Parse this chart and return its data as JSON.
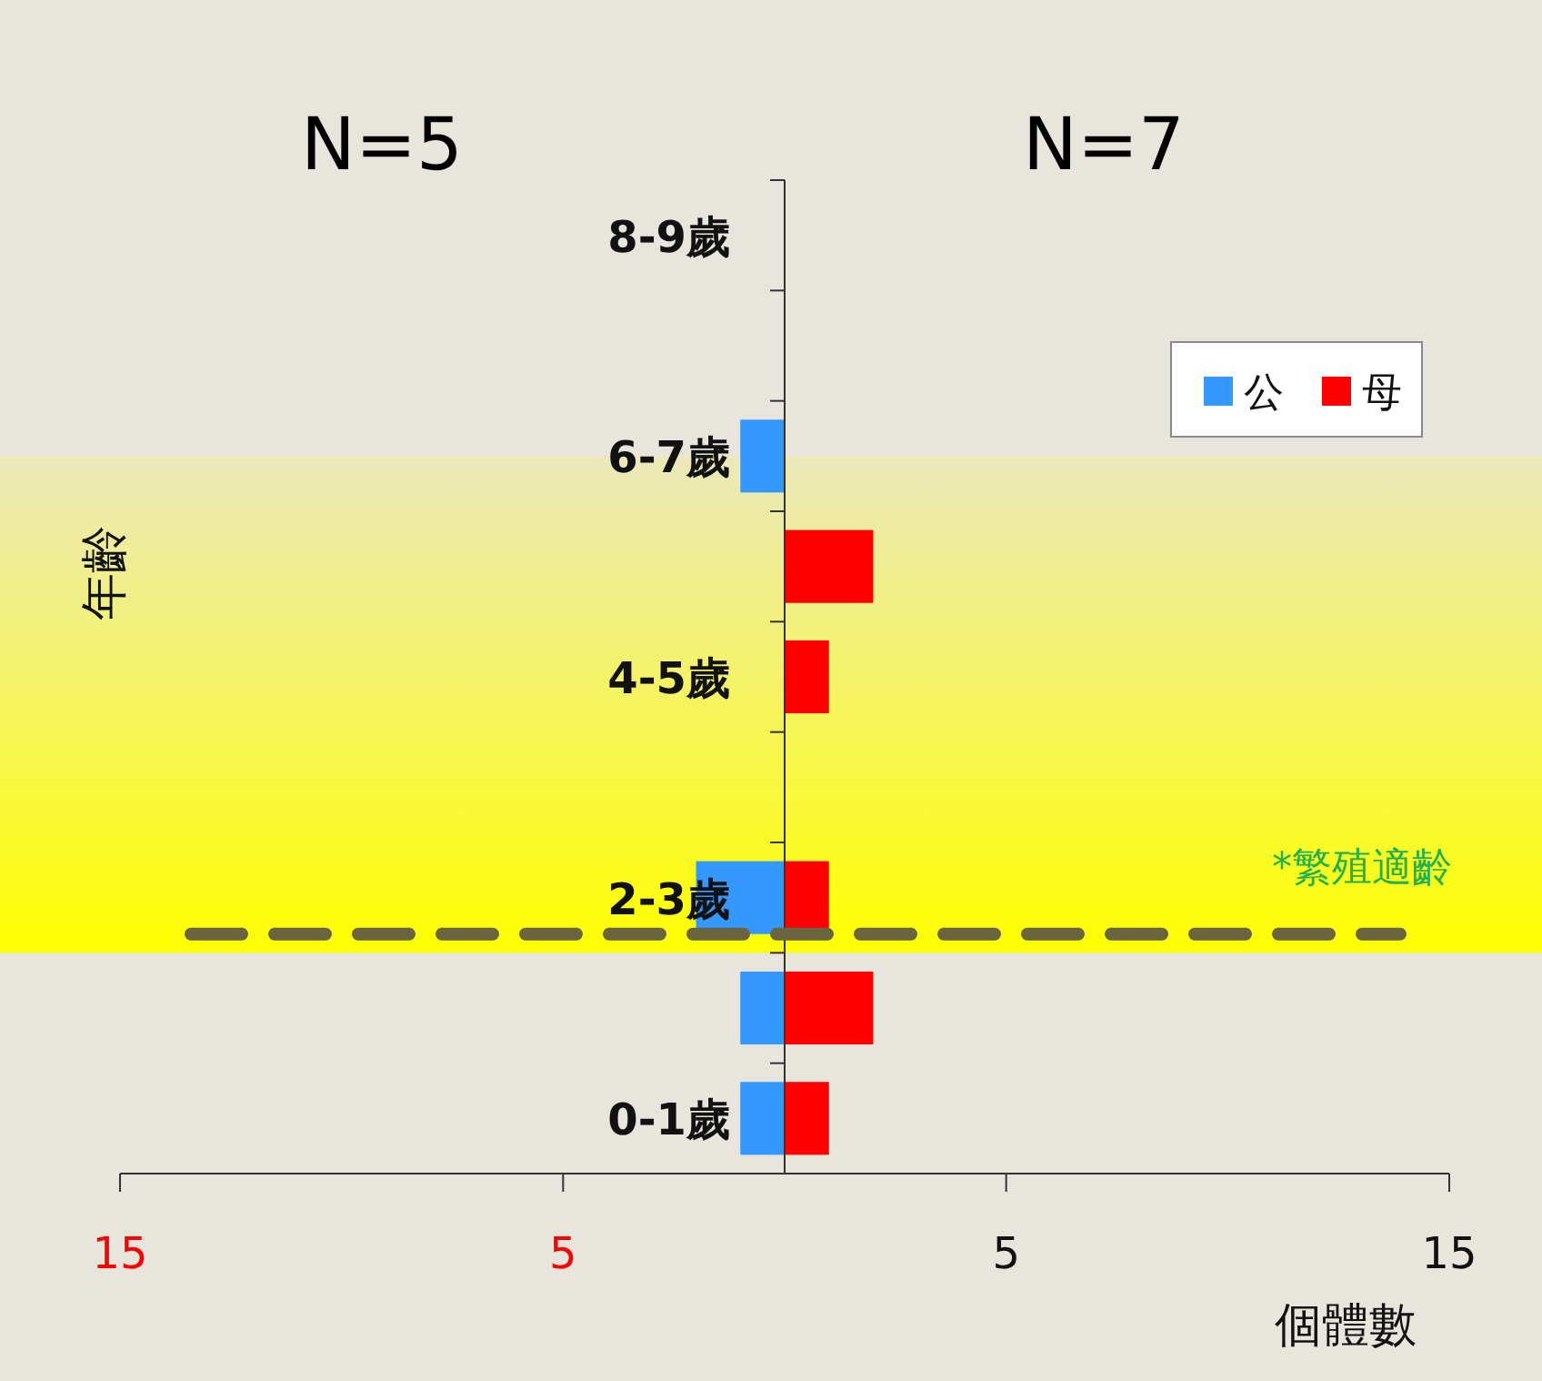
{
  "chart_data": {
    "type": "bar",
    "orientation": "horizontal",
    "categories": [
      "8-9歲",
      null,
      "6-7歲",
      null,
      "4-5歲",
      null,
      "2-3歲",
      null,
      "0-1歲"
    ],
    "series": [
      {
        "name": "公",
        "color": "#3399ff",
        "values": [
          0,
          0,
          -1,
          0,
          0,
          0,
          -2,
          -1,
          -1
        ]
      },
      {
        "name": "母",
        "color": "#ff0000",
        "values": [
          0,
          0,
          0,
          2,
          1,
          0,
          1,
          2,
          1
        ]
      }
    ],
    "xlim": [
      -15,
      15
    ],
    "xticks": [
      {
        "value": -15,
        "label": "15"
      },
      {
        "value": -5,
        "label": "5"
      },
      5,
      15
    ],
    "xlabel": "個體數",
    "ylabel": "年齡",
    "annotations": [
      "N=5",
      "N=7",
      "*繁殖適齡"
    ],
    "bands": [
      {
        "axis": "y",
        "from": "2-3歲",
        "to": "6-7歲",
        "color": "#ffff00"
      }
    ],
    "ref_lines": [
      {
        "axis": "y",
        "value": "2-3歲",
        "color": "#6b6440",
        "line_style": "dashed"
      }
    ],
    "legend": "top right",
    "grid": false
  }
}
